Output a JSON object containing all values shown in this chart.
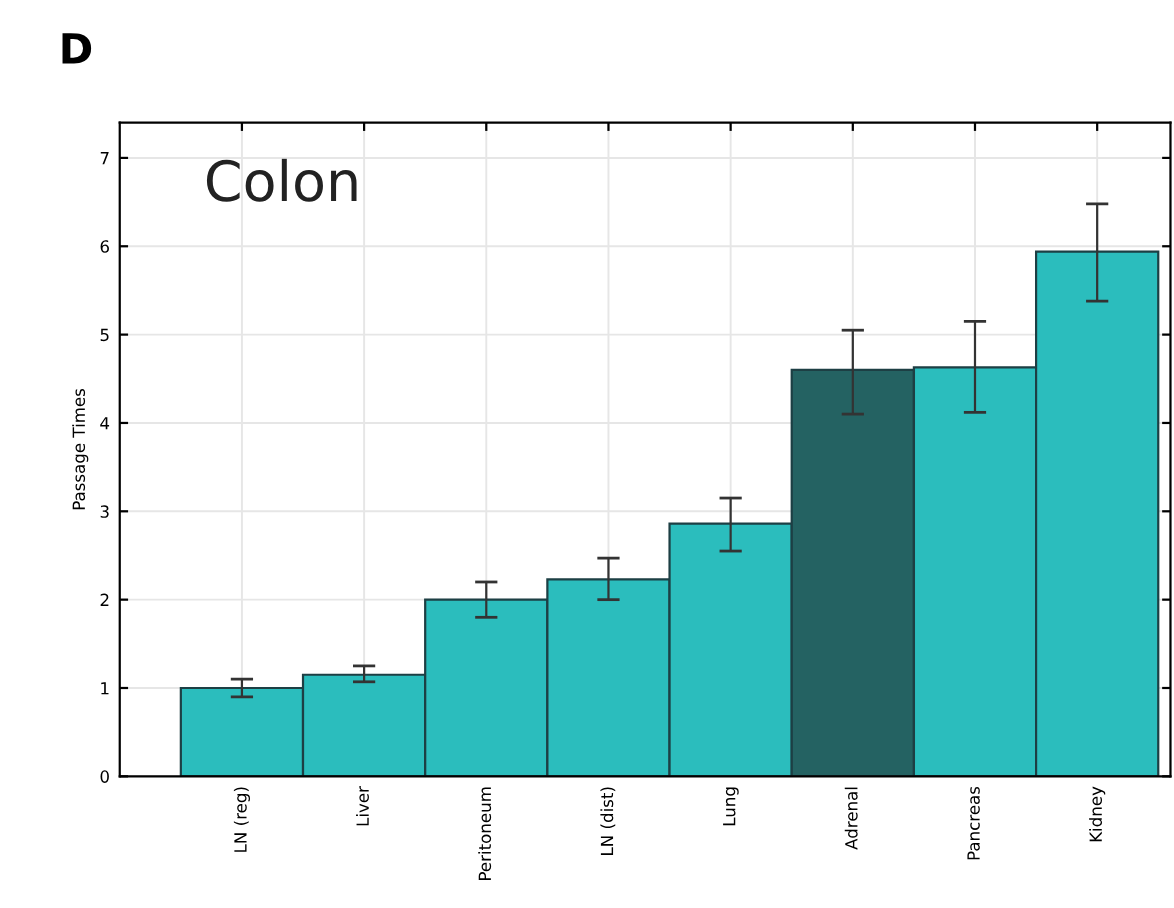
{
  "chart_data": {
    "type": "bar",
    "title": "Colon",
    "ylabel": "Passage Times",
    "annotations": [
      "D"
    ],
    "categories": [
      "LN (reg)",
      "Liver",
      "Peritoneum",
      "LN (dist)",
      "Lung",
      "Adrenal",
      "Pancreas",
      "Kidney"
    ],
    "values": [
      1.0,
      1.15,
      2.0,
      2.23,
      2.86,
      4.6,
      4.63,
      5.94
    ],
    "errors": [
      [
        0.9,
        1.1
      ],
      [
        1.07,
        1.25
      ],
      [
        1.8,
        2.2
      ],
      [
        2.0,
        2.47
      ],
      [
        2.55,
        3.15
      ],
      [
        4.1,
        5.05
      ],
      [
        4.12,
        5.15
      ],
      [
        5.38,
        6.48
      ]
    ],
    "colors": [
      "#2bbdbd",
      "#2bbdbd",
      "#2bbdbd",
      "#2bbdbd",
      "#2bbdbd",
      "#246262",
      "#2bbdbd",
      "#2bbdbd"
    ],
    "ylim": [
      0,
      7.4
    ],
    "yticks": [
      0,
      1,
      2,
      3,
      4,
      5,
      6,
      7
    ],
    "grid": true
  }
}
